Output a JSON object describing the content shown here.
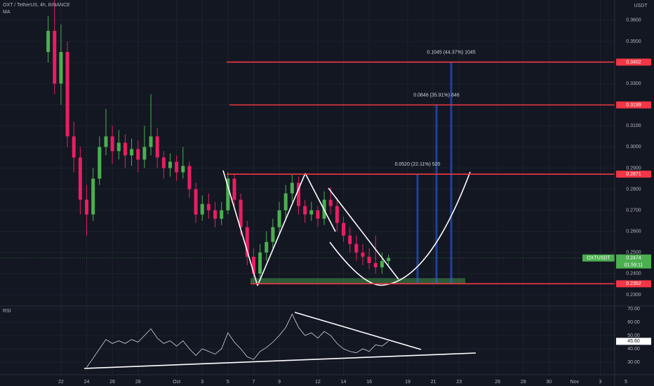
{
  "chart_data": {
    "type": "candlestick",
    "title": "OXT / TetherUS, 4h, BINANCE",
    "indicator": "MA",
    "currency": "USDT",
    "up_color": "#4caf50",
    "down_color": "#e91e63",
    "x": [
      21,
      21.5,
      22,
      22.5,
      23,
      23.5,
      24,
      24.5,
      25,
      25.5,
      26,
      26.5,
      27,
      27.5,
      28,
      28.5,
      29,
      29.5,
      30,
      30.5,
      31,
      31.5,
      32,
      32.5,
      33,
      33.5,
      34,
      34.5,
      35,
      35.5,
      36,
      36.5,
      37,
      37.5,
      38,
      38.5,
      39,
      39.5,
      40,
      40.5,
      41,
      41.5,
      42,
      42.5,
      43,
      43.5,
      44,
      44.5,
      45,
      45.5,
      46,
      46.5,
      47,
      47.5
    ],
    "open": [
      0.345,
      0.355,
      0.33,
      0.345,
      0.305,
      0.295,
      0.275,
      0.268,
      0.285,
      0.3,
      0.305,
      0.298,
      0.302,
      0.296,
      0.299,
      0.294,
      0.3,
      0.305,
      0.295,
      0.29,
      0.293,
      0.288,
      0.291,
      0.28,
      0.268,
      0.273,
      0.27,
      0.266,
      0.27,
      0.285,
      0.275,
      0.262,
      0.248,
      0.24,
      0.25,
      0.255,
      0.262,
      0.27,
      0.278,
      0.283,
      0.272,
      0.268,
      0.27,
      0.266,
      0.275,
      0.272,
      0.264,
      0.258,
      0.254,
      0.25,
      0.248,
      0.245,
      0.243,
      0.246
    ],
    "high": [
      0.362,
      0.37,
      0.358,
      0.35,
      0.312,
      0.3,
      0.282,
      0.29,
      0.305,
      0.318,
      0.31,
      0.308,
      0.306,
      0.304,
      0.303,
      0.31,
      0.325,
      0.309,
      0.298,
      0.297,
      0.296,
      0.3,
      0.293,
      0.283,
      0.277,
      0.278,
      0.274,
      0.274,
      0.288,
      0.287,
      0.278,
      0.265,
      0.252,
      0.254,
      0.26,
      0.266,
      0.274,
      0.282,
      0.287,
      0.286,
      0.275,
      0.274,
      0.272,
      0.279,
      0.281,
      0.276,
      0.267,
      0.262,
      0.258,
      0.254,
      0.252,
      0.258,
      0.25,
      0.249
    ],
    "low": [
      0.34,
      0.325,
      0.32,
      0.3,
      0.288,
      0.268,
      0.258,
      0.265,
      0.282,
      0.296,
      0.292,
      0.294,
      0.29,
      0.291,
      0.288,
      0.29,
      0.296,
      0.29,
      0.285,
      0.286,
      0.284,
      0.285,
      0.276,
      0.264,
      0.265,
      0.266,
      0.262,
      0.263,
      0.268,
      0.272,
      0.258,
      0.244,
      0.236,
      0.238,
      0.246,
      0.252,
      0.258,
      0.266,
      0.274,
      0.268,
      0.264,
      0.265,
      0.262,
      0.263,
      0.268,
      0.26,
      0.255,
      0.25,
      0.246,
      0.244,
      0.242,
      0.24,
      0.24,
      0.244
    ],
    "close": [
      0.355,
      0.33,
      0.345,
      0.305,
      0.295,
      0.275,
      0.268,
      0.285,
      0.3,
      0.305,
      0.298,
      0.302,
      0.296,
      0.299,
      0.294,
      0.3,
      0.305,
      0.295,
      0.29,
      0.293,
      0.288,
      0.291,
      0.28,
      0.268,
      0.273,
      0.27,
      0.266,
      0.27,
      0.285,
      0.275,
      0.262,
      0.248,
      0.24,
      0.25,
      0.255,
      0.262,
      0.27,
      0.278,
      0.283,
      0.272,
      0.268,
      0.27,
      0.266,
      0.275,
      0.272,
      0.264,
      0.258,
      0.254,
      0.25,
      0.248,
      0.245,
      0.243,
      0.246,
      0.2474
    ],
    "xlim": [
      17.25,
      68.18
    ],
    "xticks": [
      22,
      24,
      26,
      28,
      {
        "value": 31,
        "label": "Oct"
      },
      {
        "value": 33,
        "label": "3"
      },
      {
        "value": 35,
        "label": "5"
      },
      {
        "value": 37,
        "label": "7"
      },
      {
        "value": 39,
        "label": "9"
      },
      {
        "value": 42,
        "label": "12"
      },
      {
        "value": 44,
        "label": "14"
      },
      {
        "value": 46,
        "label": "16"
      },
      {
        "value": 49,
        "label": "19"
      },
      {
        "value": 51,
        "label": "21"
      },
      {
        "value": 53,
        "label": "23"
      },
      {
        "value": 56,
        "label": "26"
      },
      {
        "value": 58,
        "label": "28"
      },
      {
        "value": 60,
        "label": "30"
      },
      {
        "value": 62,
        "label": "Nov"
      },
      {
        "value": 64,
        "label": "3"
      },
      {
        "value": 66,
        "label": "5"
      }
    ],
    "ylim": [
      0.225,
      0.3696
    ],
    "yticks": [
      {
        "value": 0.36,
        "label": "0.3600"
      },
      {
        "value": 0.35,
        "label": "0.3500"
      },
      {
        "value": 0.34,
        "label": "0.3400"
      },
      {
        "value": 0.33,
        "label": "0.3300"
      },
      {
        "value": 0.32,
        "label": "0.3200"
      },
      {
        "value": 0.31,
        "label": "0.3100"
      },
      {
        "value": 0.3,
        "label": "0.3000"
      },
      {
        "value": 0.29,
        "label": "0.2900"
      },
      {
        "value": 0.28,
        "label": "0.2800"
      },
      {
        "value": 0.27,
        "label": "0.2700"
      },
      {
        "value": 0.26,
        "label": "0.2600"
      },
      {
        "value": 0.25,
        "label": "0.2500"
      },
      {
        "value": 0.24,
        "label": "0.2400"
      },
      {
        "value": 0.23,
        "label": "0.2300"
      }
    ],
    "levels": [
      0.3402,
      0.3199,
      0.2871,
      0.2352
    ],
    "measurements": [
      "0.1045 (44.37%) 1045",
      "0.0846 (35.91%) 846",
      "0.0520 (22.11%) 520"
    ],
    "last": {
      "symbol": "OXTUSDT",
      "value": 0.2474,
      "countdown": "01:59:11"
    },
    "rsi": {
      "name": "RSI",
      "color": "#d1d4dc",
      "values": [
        null,
        null,
        null,
        null,
        null,
        null,
        26,
        33,
        40,
        47,
        44,
        46,
        44,
        47,
        45,
        50,
        55,
        48,
        44,
        46,
        42,
        46,
        40,
        35,
        40,
        38,
        36,
        40,
        52,
        45,
        40,
        34,
        32,
        38,
        41,
        45,
        50,
        56,
        66,
        56,
        50,
        52,
        48,
        53,
        50,
        44,
        40,
        38,
        37,
        40,
        38,
        43,
        42,
        45.6
      ],
      "value_label": "45.60",
      "ylim": [
        22.6,
        71.6
      ],
      "yticks": [
        {
          "value": 70,
          "label": "70.00"
        },
        {
          "value": 60,
          "label": "60.00"
        },
        {
          "value": 50,
          "label": "50.00"
        },
        {
          "value": 40,
          "label": "40.00"
        },
        {
          "value": 30,
          "label": "30.00"
        }
      ]
    }
  }
}
